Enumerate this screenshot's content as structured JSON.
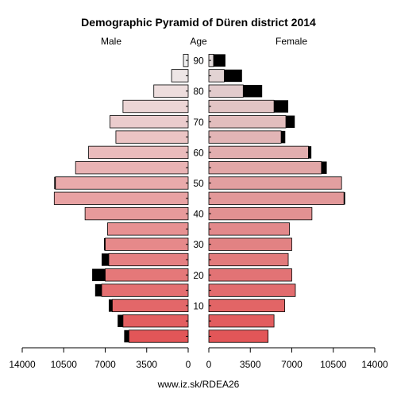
{
  "chart_data": {
    "type": "bar",
    "title": "Demographic Pyramid of Düren district 2014",
    "left_label": "Male",
    "center_label": "Age",
    "right_label": "Female",
    "footer": "www.iz.sk/RDEA26",
    "xlim": [
      0,
      14000
    ],
    "x_ticks": [
      "14000",
      "10500",
      "7000",
      "3500",
      "0"
    ],
    "x_ticks_right": [
      "0",
      "3500",
      "7000",
      "10500",
      "14000"
    ],
    "age_ticks": [
      "10",
      "20",
      "30",
      "40",
      "50",
      "60",
      "70",
      "80",
      "90"
    ],
    "age_groups": [
      "0-4",
      "5-9",
      "10-14",
      "15-19",
      "20-24",
      "25-29",
      "30-34",
      "35-39",
      "40-44",
      "45-49",
      "50-54",
      "55-59",
      "60-64",
      "65-69",
      "70-74",
      "75-79",
      "80-84",
      "85-89",
      "90+"
    ],
    "series": [
      {
        "name": "Male",
        "values": [
          5000,
          5500,
          6400,
          7300,
          7000,
          6700,
          7000,
          6800,
          8700,
          11300,
          11200,
          9500,
          8400,
          6100,
          6600,
          5500,
          2900,
          1400,
          400
        ],
        "excess": [
          400,
          450,
          300,
          550,
          1100,
          600,
          100,
          0,
          0,
          0,
          100,
          0,
          0,
          0,
          0,
          0,
          0,
          0,
          0
        ]
      },
      {
        "name": "Female",
        "values": [
          5000,
          5500,
          6400,
          7300,
          7000,
          6700,
          7000,
          6800,
          8700,
          11400,
          11200,
          9500,
          8400,
          6100,
          6500,
          5500,
          2900,
          1300,
          400
        ],
        "excess": [
          0,
          0,
          0,
          0,
          0,
          0,
          0,
          0,
          0,
          100,
          0,
          450,
          250,
          350,
          750,
          1200,
          1600,
          1500,
          1000
        ]
      }
    ]
  }
}
